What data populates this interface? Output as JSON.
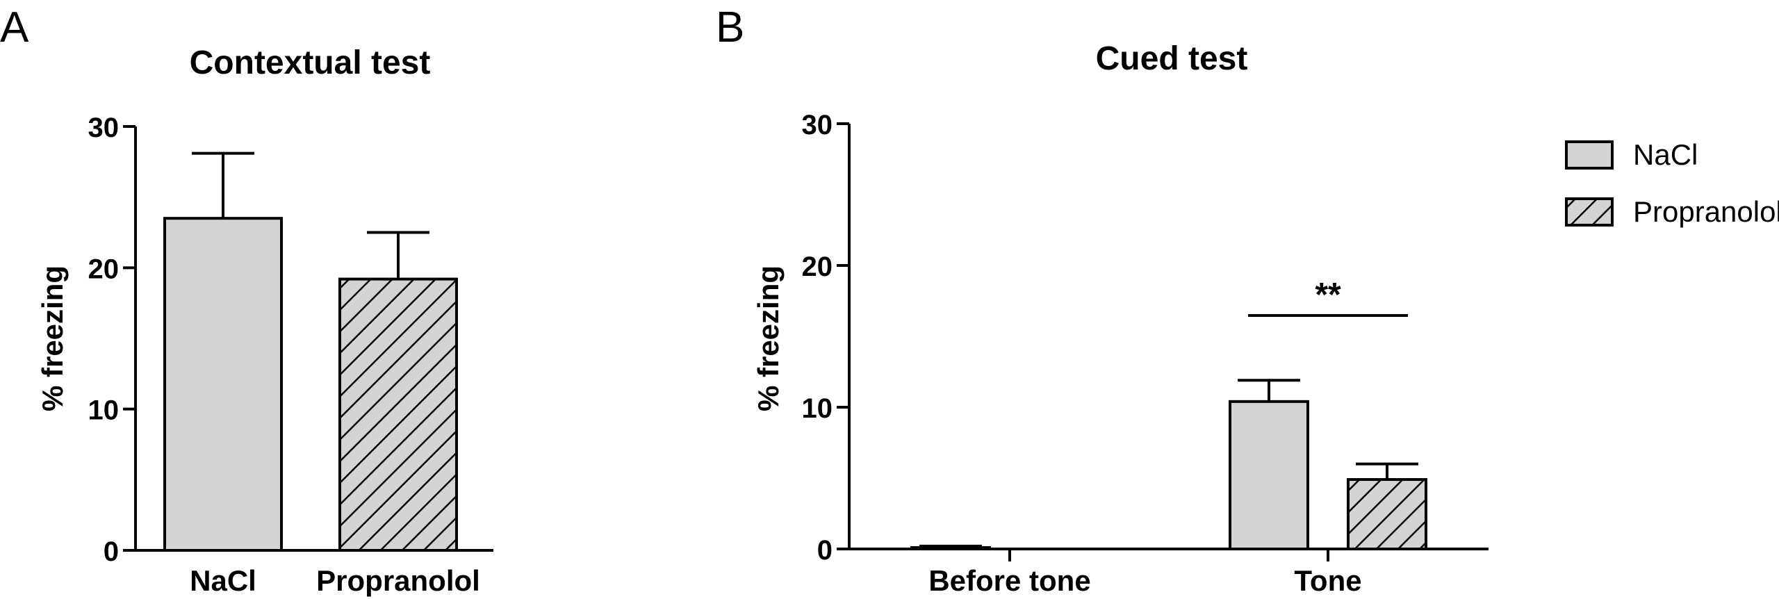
{
  "colors": {
    "nacl_fill": "#d4d4d4",
    "bar_stroke": "#000000",
    "hatch_line": "#000000",
    "background": "#ffffff"
  },
  "chart_data": [
    {
      "panel_label": "A",
      "type": "bar",
      "title": "Contextual test",
      "ylabel": "% freezing",
      "xlabel": "",
      "ylim": [
        0,
        30
      ],
      "yticks": [
        "0",
        "10",
        "20",
        "30"
      ],
      "categories": [
        "NaCl",
        "Propranolol"
      ],
      "values": [
        23.5,
        19.2
      ],
      "errors": [
        4.6,
        3.3
      ],
      "patterns": [
        "solid",
        "hatched"
      ]
    },
    {
      "panel_label": "B",
      "type": "bar",
      "title": "Cued test",
      "ylabel": "% freezing",
      "xlabel": "",
      "ylim": [
        0,
        30
      ],
      "yticks": [
        "0",
        "10",
        "20",
        "30"
      ],
      "categories": [
        "Before tone",
        "Tone"
      ],
      "series": [
        {
          "name": "NaCl",
          "values": [
            0.1,
            10.4
          ],
          "errors": [
            0.1,
            1.5
          ],
          "pattern": "solid"
        },
        {
          "name": "Propranolol",
          "values": [
            0.0,
            4.9
          ],
          "errors": [
            0.0,
            1.1
          ],
          "pattern": "hatched"
        }
      ],
      "legend": "top-right",
      "significance": [
        {
          "category": "Tone",
          "label": "**"
        }
      ]
    }
  ]
}
